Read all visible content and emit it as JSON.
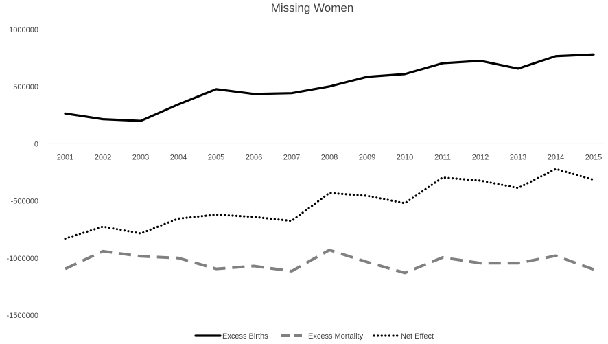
{
  "chart_data": {
    "type": "line",
    "title": "Missing Women",
    "xlabel": "",
    "ylabel": "",
    "categories": [
      "2001",
      "2002",
      "2003",
      "2004",
      "2005",
      "2006",
      "2007",
      "2008",
      "2009",
      "2010",
      "2011",
      "2012",
      "2013",
      "2014",
      "2015"
    ],
    "ylim": [
      -1500000,
      1000000
    ],
    "yticks": [
      1000000,
      500000,
      0,
      -500000,
      -1000000,
      -1500000
    ],
    "ytick_labels": [
      "1000000",
      "500000",
      "0",
      "-500000",
      "-1000000",
      "-1500000"
    ],
    "grid": false,
    "legend_position": "bottom",
    "series": [
      {
        "name": "Excess Births",
        "style": "solid",
        "color": "#000000",
        "values": [
          265000,
          215000,
          200000,
          345000,
          478000,
          436000,
          443000,
          502000,
          586000,
          610000,
          705000,
          726000,
          658000,
          767000,
          782000
        ]
      },
      {
        "name": "Excess Mortality",
        "style": "dashed",
        "color": "#808080",
        "values": [
          -1095000,
          -940000,
          -985000,
          -1000000,
          -1095000,
          -1070000,
          -1115000,
          -930000,
          -1035000,
          -1130000,
          -995000,
          -1045000,
          -1045000,
          -980000,
          -1100000
        ]
      },
      {
        "name": "Net Effect",
        "style": "dotted",
        "color": "#000000",
        "values": [
          -830000,
          -725000,
          -785000,
          -655000,
          -620000,
          -640000,
          -675000,
          -430000,
          -455000,
          -520000,
          -295000,
          -322000,
          -387000,
          -220000,
          -315000
        ]
      }
    ]
  }
}
